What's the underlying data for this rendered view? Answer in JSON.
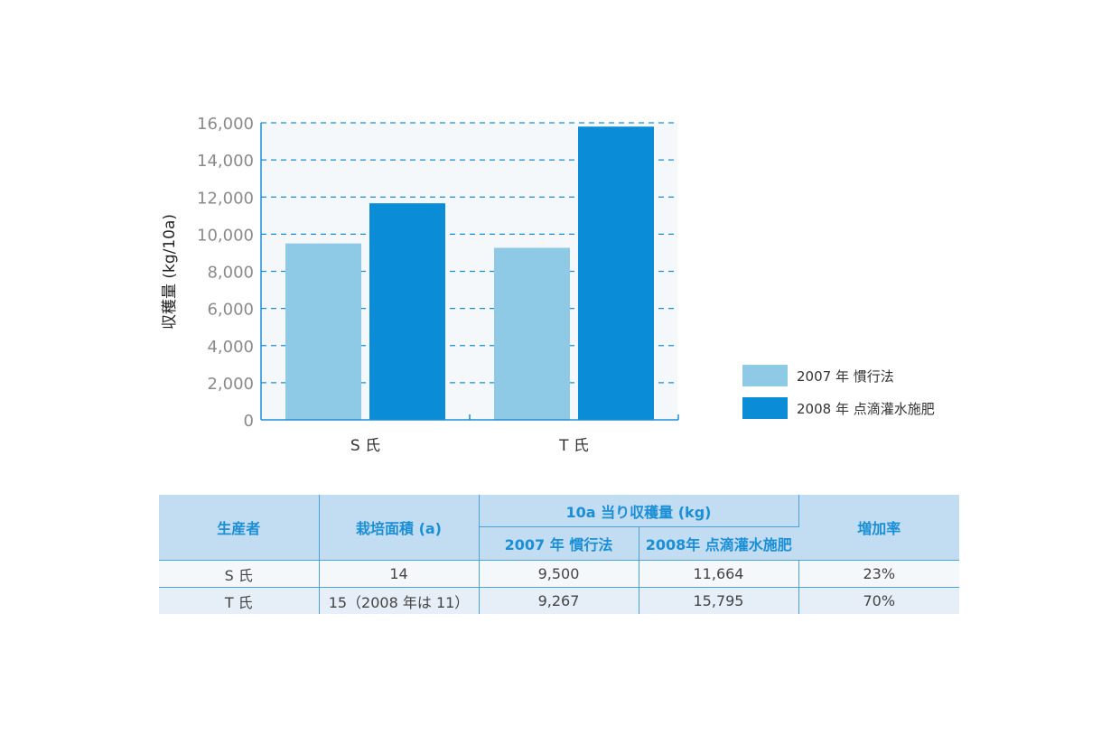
{
  "chart_data": {
    "type": "bar",
    "categories": [
      "S 氏",
      "T 氏"
    ],
    "series": [
      {
        "name": "2007 年 慣行法",
        "values": [
          9500,
          9267
        ],
        "color": "#8ecae6"
      },
      {
        "name": "2008 年 点滴灌水施肥",
        "values": [
          11664,
          15795
        ],
        "color": "#0a8dd6"
      }
    ],
    "ylabel": "収穫量 (kg/10a)",
    "xlabel": "",
    "ylim": [
      0,
      16000
    ],
    "yticks": [
      "0",
      "2,000",
      "4,000",
      "6,000",
      "8,000",
      "10,000",
      "12,000",
      "14,000",
      "16,000"
    ],
    "grid": true,
    "legend": "right"
  },
  "table": {
    "headers": {
      "producer": "生産者",
      "area": "栽培面積 (a)",
      "yield_group": "10a 当り収穫量 (kg)",
      "y2007": "2007 年 慣行法",
      "y2008": "2008年 点滴灌水施肥",
      "increase": "増加率"
    },
    "rows": [
      {
        "producer": "S 氏",
        "area": "14",
        "y2007": "9,500",
        "y2008": "11,664",
        "increase": "23%"
      },
      {
        "producer": "T 氏",
        "area": "15（2008 年は 11）",
        "y2007": "9,267",
        "y2008": "15,795",
        "increase": "70%"
      }
    ]
  }
}
